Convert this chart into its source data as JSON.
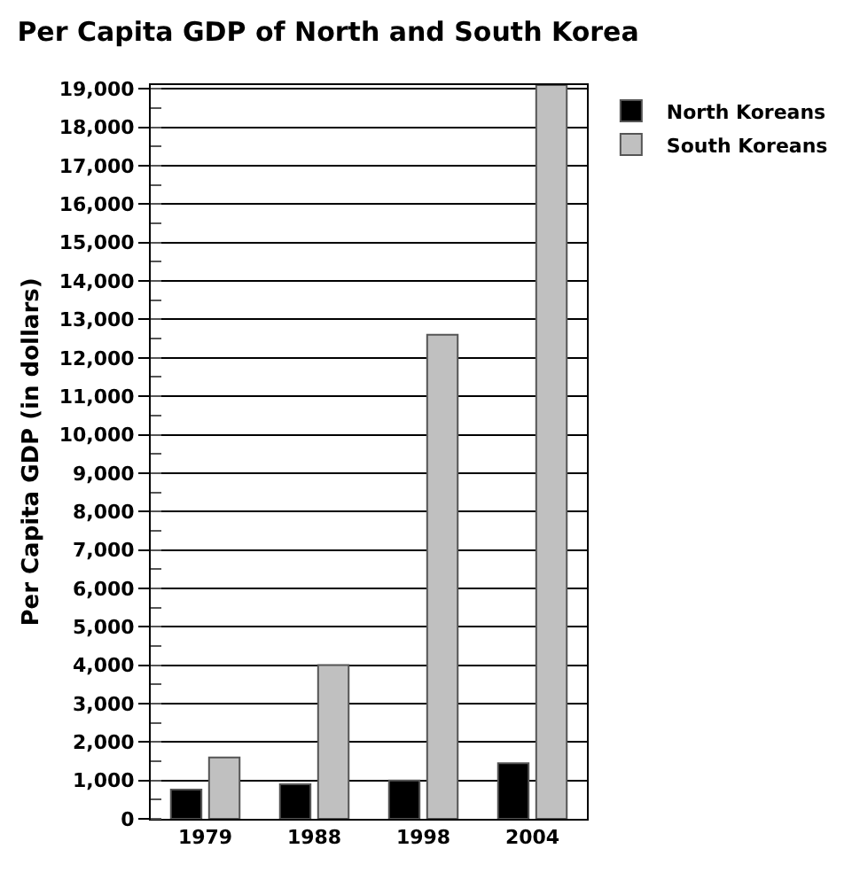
{
  "chart_data": {
    "type": "bar",
    "title": "Per Capita GDP of North and South Korea",
    "ylabel": "Per Capita GDP (in dollars)",
    "categories": [
      "1979",
      "1988",
      "1998",
      "2004"
    ],
    "series": [
      {
        "name": "North Koreans",
        "color": "#000000",
        "values": [
          760,
          900,
          1000,
          1450
        ]
      },
      {
        "name": "South Koreans",
        "color": "#c0c0c0",
        "values": [
          1600,
          4000,
          12600,
          19100
        ]
      }
    ],
    "ylim": [
      0,
      19100
    ],
    "yticks": [
      {
        "value": 0,
        "label": "0"
      },
      {
        "value": 1000,
        "label": "1,000"
      },
      {
        "value": 2000,
        "label": "2,000"
      },
      {
        "value": 3000,
        "label": "3,000"
      },
      {
        "value": 4000,
        "label": "4,000"
      },
      {
        "value": 5000,
        "label": "5,000"
      },
      {
        "value": 6000,
        "label": "6,000"
      },
      {
        "value": 7000,
        "label": "7,000"
      },
      {
        "value": 8000,
        "label": "8,000"
      },
      {
        "value": 9000,
        "label": "9,000"
      },
      {
        "value": 10000,
        "label": "10,000"
      },
      {
        "value": 11000,
        "label": "11,000"
      },
      {
        "value": 12000,
        "label": "12,000"
      },
      {
        "value": 13000,
        "label": "13,000"
      },
      {
        "value": 14000,
        "label": "14,000"
      },
      {
        "value": 15000,
        "label": "15,000"
      },
      {
        "value": 16000,
        "label": "16,000"
      },
      {
        "value": 17000,
        "label": "17,000"
      },
      {
        "value": 18000,
        "label": "18,000"
      },
      {
        "value": 19000,
        "label": "19,000"
      }
    ],
    "grid": "y",
    "legend": "top right"
  }
}
